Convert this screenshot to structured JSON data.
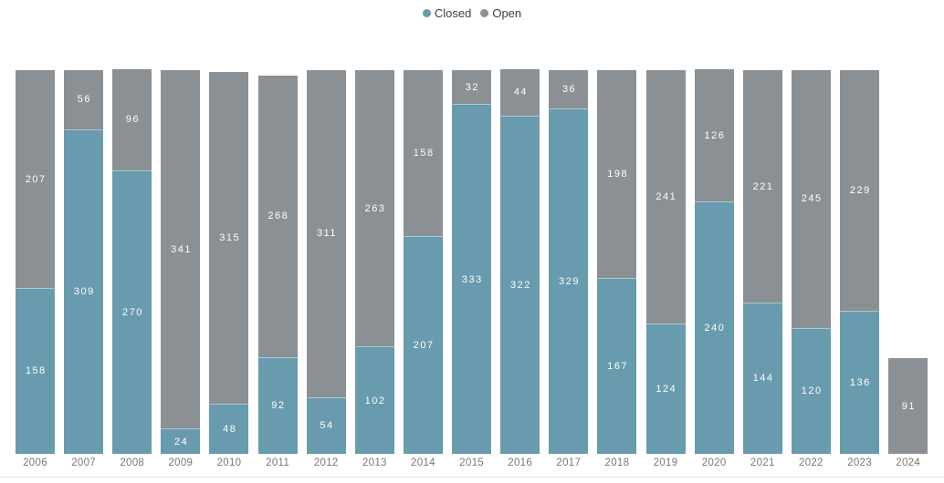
{
  "legend": {
    "items": [
      {
        "label": "Closed",
        "color": "#679BAD"
      },
      {
        "label": "Open",
        "color": "#8A9094"
      }
    ]
  },
  "chart_data": {
    "type": "bar",
    "stacked": true,
    "title": "",
    "xlabel": "",
    "ylabel": "",
    "grid": false,
    "legend_position": "top-center",
    "data_labels": true,
    "label_color": "#FFFFFF",
    "axis_label_color": "#777777",
    "baseline_color": "#DDE5E9",
    "ylim": [
      0,
      366
    ],
    "categories": [
      "2006",
      "2007",
      "2008",
      "2009",
      "2010",
      "2011",
      "2012",
      "2013",
      "2014",
      "2015",
      "2016",
      "2017",
      "2018",
      "2019",
      "2020",
      "2021",
      "2022",
      "2023",
      "2024"
    ],
    "series": [
      {
        "name": "Closed",
        "color": "#679BAD",
        "values": [
          158,
          309,
          270,
          24,
          48,
          92,
          54,
          102,
          207,
          333,
          322,
          329,
          167,
          124,
          240,
          144,
          120,
          136,
          0
        ]
      },
      {
        "name": "Open",
        "color": "#8A9094",
        "values": [
          207,
          56,
          96,
          341,
          315,
          268,
          311,
          263,
          158,
          32,
          44,
          36,
          198,
          241,
          126,
          221,
          245,
          229,
          91
        ]
      }
    ]
  }
}
